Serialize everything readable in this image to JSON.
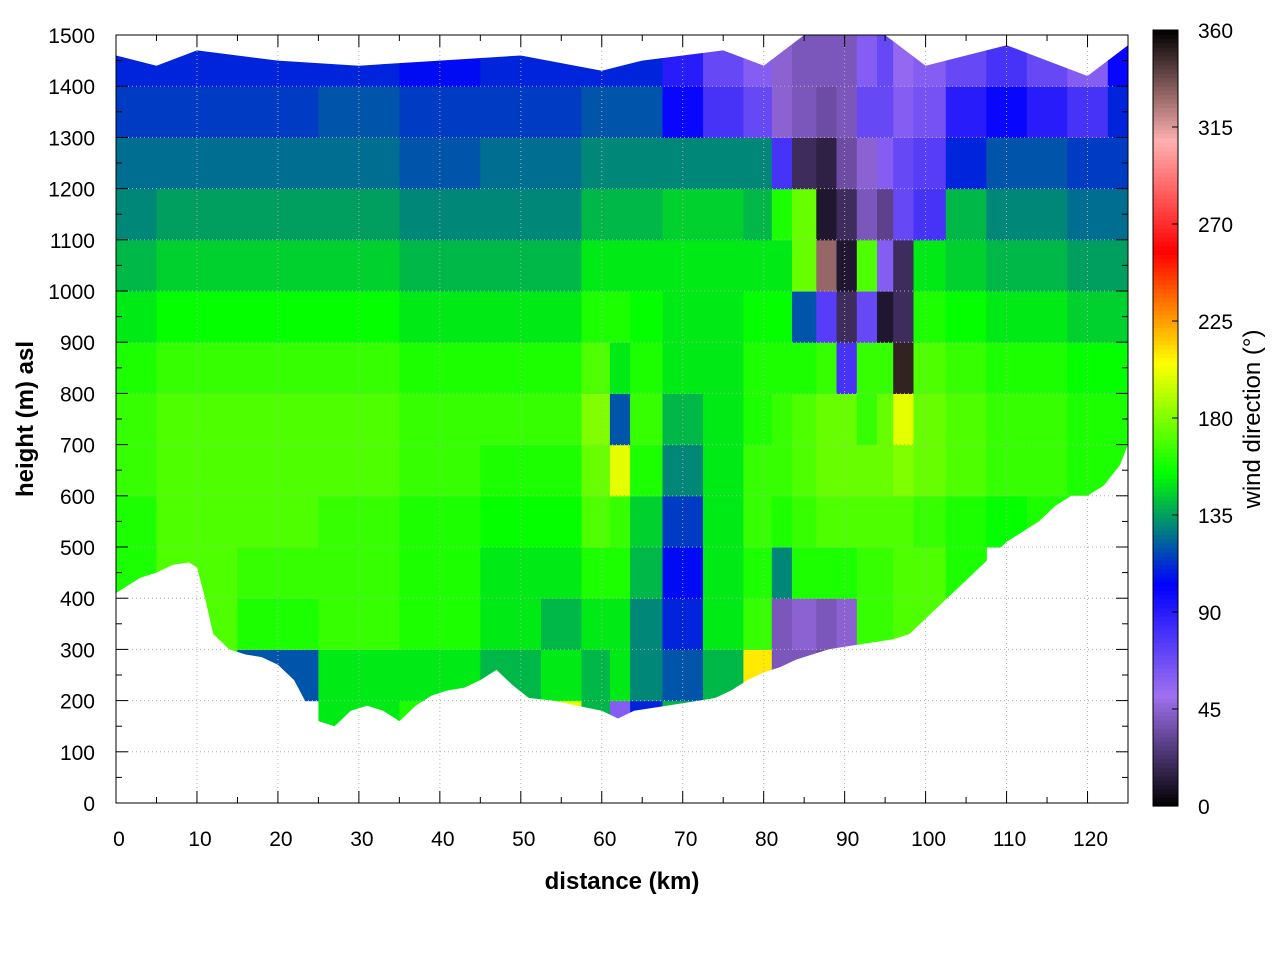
{
  "chart_data": {
    "type": "heatmap",
    "title": "",
    "xlabel": "distance (km)",
    "ylabel": "height (m) asl",
    "colorbar_label": "wind direction (°)",
    "xlim": [
      0,
      125
    ],
    "ylim": [
      0,
      1500
    ],
    "clim": [
      0,
      360
    ],
    "x_ticks": [
      "0",
      "10",
      "20",
      "30",
      "40",
      "50",
      "60",
      "70",
      "80",
      "90",
      "100",
      "110",
      "120"
    ],
    "y_ticks": [
      "0",
      "100",
      "200",
      "300",
      "400",
      "500",
      "600",
      "700",
      "800",
      "900",
      "1000",
      "1100",
      "1200",
      "1300",
      "1400",
      "1500"
    ],
    "colorbar_ticks": [
      "0",
      "45",
      "90",
      "135",
      "180",
      "225",
      "270",
      "315",
      "360"
    ],
    "grid": true,
    "colormap": [
      "#000000",
      "#a070f0",
      "#0000ff",
      "#00ff00",
      "#ffff00",
      "#ff0000",
      "#ffb0b0",
      "#000000"
    ],
    "terrain_profile": {
      "x": [
        0,
        3,
        5,
        7,
        9,
        10,
        11,
        12,
        14,
        16,
        18,
        20,
        22,
        24,
        25,
        27,
        29,
        31,
        33,
        35,
        37,
        39,
        41,
        43,
        45,
        47,
        49,
        51,
        54,
        57,
        60,
        62,
        64,
        66,
        68,
        70,
        72,
        74,
        76,
        78,
        80,
        82,
        84,
        86,
        88,
        90,
        92,
        94,
        96,
        98,
        100,
        102,
        104,
        106,
        108,
        110,
        112,
        114,
        116,
        118,
        120,
        122,
        124,
        125
      ],
      "height_m": [
        410,
        440,
        450,
        465,
        470,
        460,
        400,
        330,
        300,
        290,
        285,
        270,
        240,
        180,
        160,
        150,
        180,
        190,
        180,
        160,
        190,
        210,
        220,
        225,
        240,
        260,
        230,
        205,
        200,
        190,
        180,
        165,
        180,
        185,
        190,
        195,
        200,
        205,
        220,
        240,
        255,
        265,
        280,
        290,
        300,
        305,
        310,
        315,
        320,
        330,
        360,
        390,
        420,
        450,
        480,
        510,
        530,
        550,
        580,
        600,
        600,
        620,
        660,
        700
      ]
    },
    "top_boundary": {
      "x": [
        0,
        5,
        10,
        20,
        30,
        40,
        50,
        60,
        65,
        70,
        75,
        80,
        85,
        90,
        95,
        100,
        105,
        110,
        115,
        120,
        125
      ],
      "height_m": [
        1460,
        1440,
        1470,
        1450,
        1440,
        1450,
        1460,
        1430,
        1450,
        1460,
        1470,
        1440,
        1500,
        1500,
        1500,
        1440,
        1460,
        1480,
        1450,
        1420,
        1480
      ]
    },
    "x": [
      0,
      10,
      20,
      30,
      40,
      50,
      55,
      60,
      62,
      65,
      70,
      75,
      80,
      82,
      85,
      88,
      90,
      93,
      95,
      97,
      100,
      105,
      110,
      115,
      120,
      125
    ],
    "y": [
      150,
      250,
      350,
      450,
      550,
      650,
      750,
      850,
      950,
      1050,
      1150,
      1250,
      1350,
      1450
    ],
    "z": [
      [
        null,
        null,
        null,
        150,
        160,
        140,
        200,
        140,
        60,
        110,
        140,
        130,
        null,
        null,
        null,
        null,
        null,
        null,
        null,
        null,
        null,
        null,
        null,
        null,
        null,
        null
      ],
      [
        null,
        165,
        120,
        150,
        150,
        140,
        150,
        140,
        150,
        130,
        120,
        140,
        210,
        40,
        40,
        35,
        30,
        30,
        160,
        null,
        null,
        null,
        null,
        null,
        null,
        null
      ],
      [
        null,
        170,
        160,
        165,
        160,
        150,
        140,
        150,
        150,
        130,
        110,
        150,
        165,
        40,
        45,
        40,
        45,
        165,
        165,
        170,
        170,
        null,
        null,
        null,
        null,
        null
      ],
      [
        160,
        170,
        165,
        165,
        160,
        150,
        150,
        160,
        160,
        140,
        105,
        150,
        160,
        130,
        160,
        160,
        160,
        165,
        165,
        170,
        170,
        160,
        null,
        null,
        null,
        null
      ],
      [
        160,
        170,
        170,
        165,
        160,
        155,
        155,
        170,
        165,
        145,
        115,
        150,
        165,
        160,
        165,
        170,
        170,
        170,
        170,
        170,
        165,
        160,
        155,
        160,
        160,
        null
      ],
      [
        165,
        170,
        170,
        170,
        165,
        160,
        160,
        175,
        200,
        160,
        130,
        150,
        165,
        165,
        170,
        175,
        175,
        175,
        175,
        180,
        175,
        170,
        165,
        165,
        160,
        160
      ],
      [
        165,
        170,
        170,
        170,
        165,
        165,
        165,
        180,
        120,
        165,
        140,
        150,
        160,
        165,
        170,
        175,
        175,
        165,
        175,
        200,
        175,
        170,
        165,
        165,
        160,
        160
      ],
      [
        160,
        165,
        165,
        165,
        160,
        160,
        160,
        170,
        150,
        160,
        150,
        150,
        160,
        160,
        160,
        165,
        80,
        165,
        165,
        350,
        170,
        165,
        160,
        160,
        155,
        155
      ],
      [
        150,
        155,
        155,
        155,
        150,
        150,
        150,
        160,
        160,
        155,
        150,
        150,
        155,
        155,
        120,
        75,
        20,
        70,
        10,
        20,
        160,
        155,
        150,
        150,
        145,
        145
      ],
      [
        140,
        145,
        145,
        145,
        140,
        140,
        140,
        150,
        150,
        150,
        150,
        150,
        150,
        150,
        175,
        330,
        10,
        170,
        60,
        20,
        150,
        145,
        140,
        140,
        135,
        135
      ],
      [
        130,
        135,
        135,
        135,
        130,
        130,
        130,
        140,
        140,
        140,
        145,
        145,
        140,
        160,
        175,
        10,
        20,
        40,
        30,
        70,
        80,
        140,
        130,
        130,
        125,
        125
      ],
      [
        125,
        125,
        125,
        125,
        120,
        125,
        125,
        130,
        130,
        130,
        130,
        130,
        130,
        80,
        20,
        15,
        35,
        45,
        60,
        70,
        75,
        110,
        120,
        120,
        115,
        115
      ],
      [
        115,
        115,
        115,
        120,
        115,
        115,
        115,
        120,
        120,
        120,
        100,
        80,
        70,
        45,
        40,
        35,
        40,
        70,
        70,
        60,
        65,
        90,
        100,
        90,
        80,
        110
      ],
      [
        110,
        110,
        110,
        110,
        105,
        110,
        110,
        110,
        110,
        110,
        90,
        70,
        60,
        45,
        40,
        40,
        40,
        60,
        70,
        55,
        60,
        70,
        80,
        70,
        60,
        100
      ]
    ]
  }
}
